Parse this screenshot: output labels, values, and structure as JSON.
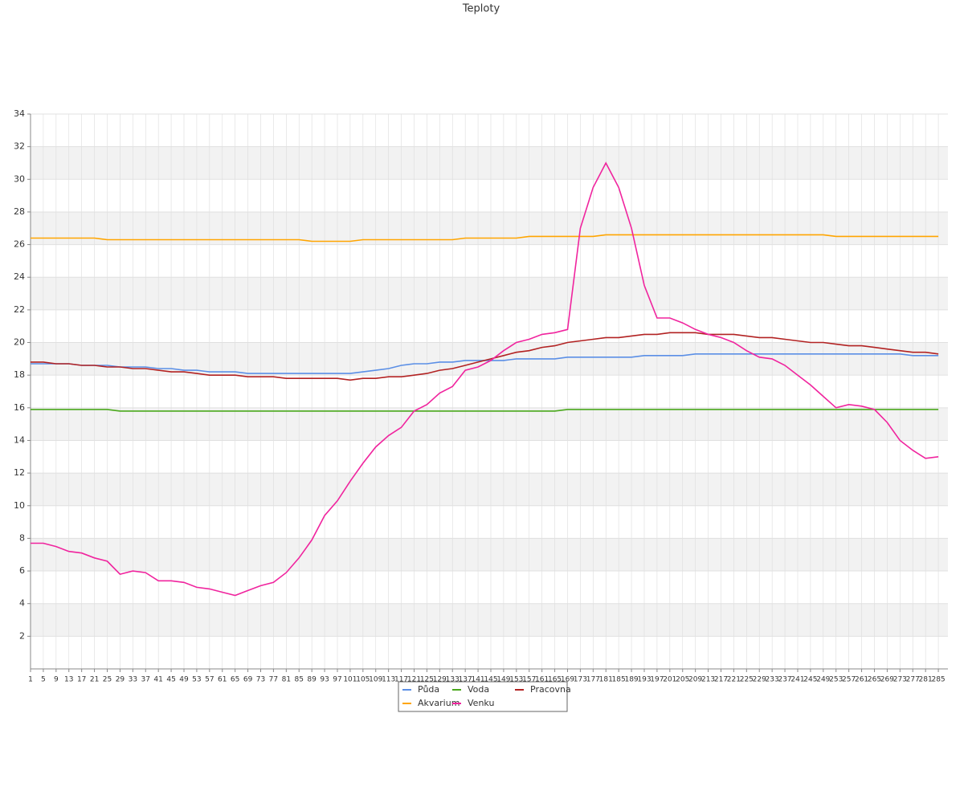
{
  "chart_data": {
    "type": "line",
    "title": "Teploty",
    "x": [
      1,
      5,
      9,
      13,
      17,
      21,
      25,
      29,
      33,
      37,
      41,
      45,
      49,
      53,
      57,
      61,
      65,
      69,
      73,
      77,
      81,
      85,
      89,
      93,
      97,
      101,
      105,
      109,
      113,
      117,
      121,
      125,
      129,
      133,
      137,
      141,
      145,
      149,
      153,
      157,
      161,
      165,
      169,
      173,
      177,
      181,
      185,
      189,
      193,
      197,
      201,
      205,
      209,
      213,
      217,
      221,
      225,
      229,
      233,
      237,
      241,
      245,
      249,
      253,
      257,
      261,
      265,
      269,
      273,
      277,
      281,
      285
    ],
    "xlim": [
      1,
      288
    ],
    "ylim": [
      0,
      34
    ],
    "yticks": [
      2,
      4,
      6,
      8,
      10,
      12,
      14,
      16,
      18,
      20,
      22,
      24,
      26,
      28,
      30,
      32,
      34
    ],
    "grid": true,
    "legend": "bottom",
    "series": [
      {
        "name": "Půda",
        "color": "#5b8fe6",
        "values": [
          18.7,
          18.7,
          18.7,
          18.7,
          18.6,
          18.6,
          18.6,
          18.5,
          18.5,
          18.5,
          18.4,
          18.4,
          18.3,
          18.3,
          18.2,
          18.2,
          18.2,
          18.1,
          18.1,
          18.1,
          18.1,
          18.1,
          18.1,
          18.1,
          18.1,
          18.1,
          18.2,
          18.3,
          18.4,
          18.6,
          18.7,
          18.7,
          18.8,
          18.8,
          18.9,
          18.9,
          18.9,
          18.9,
          19.0,
          19.0,
          19.0,
          19.0,
          19.1,
          19.1,
          19.1,
          19.1,
          19.1,
          19.1,
          19.2,
          19.2,
          19.2,
          19.2,
          19.3,
          19.3,
          19.3,
          19.3,
          19.3,
          19.3,
          19.3,
          19.3,
          19.3,
          19.3,
          19.3,
          19.3,
          19.3,
          19.3,
          19.3,
          19.3,
          19.3,
          19.2,
          19.2,
          19.2
        ]
      },
      {
        "name": "Voda",
        "color": "#4aa81c",
        "values": [
          15.9,
          15.9,
          15.9,
          15.9,
          15.9,
          15.9,
          15.9,
          15.8,
          15.8,
          15.8,
          15.8,
          15.8,
          15.8,
          15.8,
          15.8,
          15.8,
          15.8,
          15.8,
          15.8,
          15.8,
          15.8,
          15.8,
          15.8,
          15.8,
          15.8,
          15.8,
          15.8,
          15.8,
          15.8,
          15.8,
          15.8,
          15.8,
          15.8,
          15.8,
          15.8,
          15.8,
          15.8,
          15.8,
          15.8,
          15.8,
          15.8,
          15.8,
          15.9,
          15.9,
          15.9,
          15.9,
          15.9,
          15.9,
          15.9,
          15.9,
          15.9,
          15.9,
          15.9,
          15.9,
          15.9,
          15.9,
          15.9,
          15.9,
          15.9,
          15.9,
          15.9,
          15.9,
          15.9,
          15.9,
          15.9,
          15.9,
          15.9,
          15.9,
          15.9,
          15.9,
          15.9,
          15.9
        ]
      },
      {
        "name": "Pracovna",
        "color": "#b22222",
        "values": [
          18.8,
          18.8,
          18.7,
          18.7,
          18.6,
          18.6,
          18.5,
          18.5,
          18.4,
          18.4,
          18.3,
          18.2,
          18.2,
          18.1,
          18.0,
          18.0,
          18.0,
          17.9,
          17.9,
          17.9,
          17.8,
          17.8,
          17.8,
          17.8,
          17.8,
          17.7,
          17.8,
          17.8,
          17.9,
          17.9,
          18.0,
          18.1,
          18.3,
          18.4,
          18.6,
          18.8,
          19.0,
          19.2,
          19.4,
          19.5,
          19.7,
          19.8,
          20.0,
          20.1,
          20.2,
          20.3,
          20.3,
          20.4,
          20.5,
          20.5,
          20.6,
          20.6,
          20.6,
          20.5,
          20.5,
          20.5,
          20.4,
          20.3,
          20.3,
          20.2,
          20.1,
          20.0,
          20.0,
          19.9,
          19.8,
          19.8,
          19.7,
          19.6,
          19.5,
          19.4,
          19.4,
          19.3
        ]
      },
      {
        "name": "Akvarium",
        "color": "#ffa500",
        "values": [
          26.4,
          26.4,
          26.4,
          26.4,
          26.4,
          26.4,
          26.3,
          26.3,
          26.3,
          26.3,
          26.3,
          26.3,
          26.3,
          26.3,
          26.3,
          26.3,
          26.3,
          26.3,
          26.3,
          26.3,
          26.3,
          26.3,
          26.2,
          26.2,
          26.2,
          26.2,
          26.3,
          26.3,
          26.3,
          26.3,
          26.3,
          26.3,
          26.3,
          26.3,
          26.4,
          26.4,
          26.4,
          26.4,
          26.4,
          26.5,
          26.5,
          26.5,
          26.5,
          26.5,
          26.5,
          26.6,
          26.6,
          26.6,
          26.6,
          26.6,
          26.6,
          26.6,
          26.6,
          26.6,
          26.6,
          26.6,
          26.6,
          26.6,
          26.6,
          26.6,
          26.6,
          26.6,
          26.6,
          26.5,
          26.5,
          26.5,
          26.5,
          26.5,
          26.5,
          26.5,
          26.5,
          26.5
        ]
      },
      {
        "name": "Venku",
        "color": "#f0249e",
        "values": [
          7.7,
          7.7,
          7.5,
          7.2,
          7.1,
          6.8,
          6.6,
          5.8,
          6.0,
          5.9,
          5.4,
          5.4,
          5.3,
          5.0,
          4.9,
          4.7,
          4.5,
          4.8,
          5.1,
          5.3,
          5.9,
          6.8,
          7.9,
          9.4,
          10.3,
          11.5,
          12.6,
          13.6,
          14.3,
          14.8,
          15.8,
          16.2,
          16.9,
          17.3,
          18.3,
          18.5,
          18.9,
          19.5,
          20.0,
          20.2,
          20.5,
          20.6,
          20.8,
          27.0,
          29.5,
          31.0,
          29.5,
          27.0,
          23.5,
          21.5,
          21.5,
          21.2,
          20.8,
          20.5,
          20.3,
          20.0,
          19.5,
          19.1,
          19.0,
          18.6,
          18.0,
          17.4,
          16.7,
          16.0,
          16.2,
          16.1,
          15.9,
          15.1,
          14.0,
          13.4,
          12.9,
          13.0
        ]
      }
    ]
  }
}
